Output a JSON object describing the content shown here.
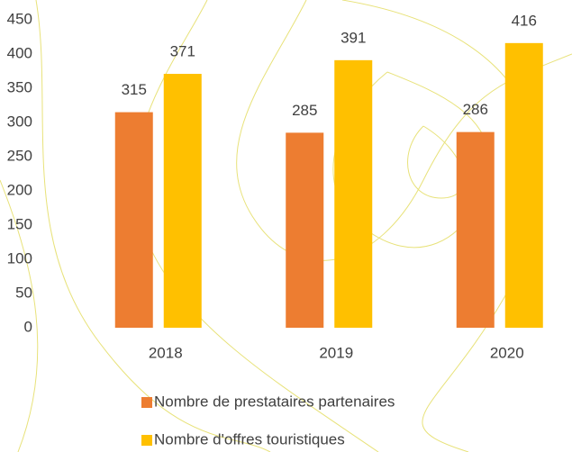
{
  "chart_data": {
    "type": "bar",
    "categories": [
      "2018",
      "2019",
      "2020"
    ],
    "series": [
      {
        "name": "Nombre de prestataires partenaires",
        "color": "#ed7d31",
        "values": [
          315,
          285,
          286
        ]
      },
      {
        "name": "Nombre d'offres touristiques",
        "color": "#ffc000",
        "values": [
          371,
          391,
          416
        ]
      }
    ],
    "ylim": [
      0,
      450
    ],
    "yticks": [
      0,
      50,
      100,
      150,
      200,
      250,
      300,
      350,
      400,
      450
    ],
    "grid": false,
    "legend": "bottom"
  }
}
